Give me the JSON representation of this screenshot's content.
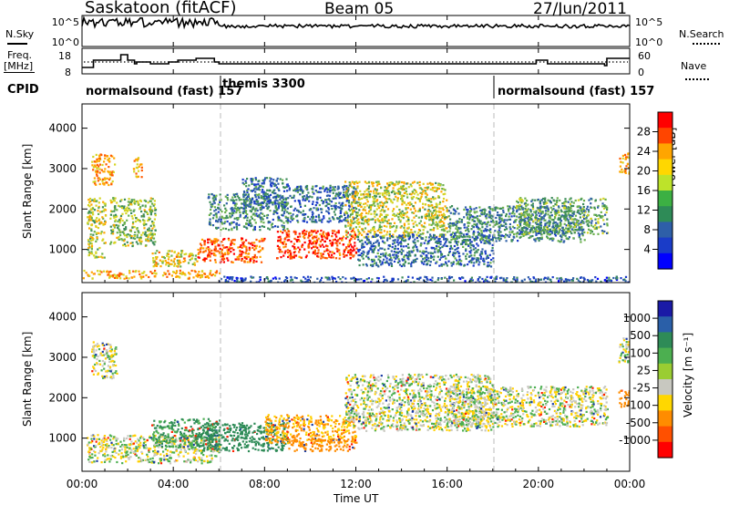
{
  "header": {
    "station": "Saskatoon (fitACF)",
    "beam": "Beam 05",
    "date": "27/Jun/2011"
  },
  "noise_panel": {
    "left_label": "N.Sky",
    "right_label": "N.Search",
    "left_ticks": [
      "10^5",
      "10^0"
    ],
    "right_ticks": [
      "10^5",
      "10^0"
    ]
  },
  "freq_panel": {
    "left_label_1": "Freq.",
    "left_label_2": "[MHz]",
    "right_label": "Nave",
    "left_ticks": [
      "18",
      "8"
    ],
    "right_ticks": [
      "60",
      "0"
    ]
  },
  "cpid": {
    "label": "CPID",
    "modes": [
      {
        "text": "normalsound (fast) 157",
        "start_hour": 0
      },
      {
        "text": "themis 3300",
        "start_hour": 6
      },
      {
        "text": "normalsound (fast) 157",
        "start_hour": 18
      }
    ]
  },
  "power_panel": {
    "ylabel": "Slant Range [km]",
    "colorbar_label": "Power [dB]",
    "colorbar_ticks": [
      "28",
      "24",
      "20",
      "16",
      "12",
      "8",
      "4"
    ],
    "colorbar_colors": [
      "#ff0000",
      "#ff4500",
      "#ffa500",
      "#ffd700",
      "#bde32a",
      "#3cb043",
      "#2e8b57",
      "#2e5fa8",
      "#1a3cc8",
      "#0000ff"
    ]
  },
  "velocity_panel": {
    "ylabel": "Slant Range [km]",
    "colorbar_label": "Velocity [m s⁻¹]",
    "colorbar_ticks": [
      "1000",
      "500",
      "100",
      "25",
      "-25",
      "-100",
      "-500",
      "-1000"
    ],
    "colorbar_colors": [
      "#1a1aa6",
      "#2a5fa8",
      "#2e8b57",
      "#4caf50",
      "#9acd32",
      "#c8c8c0",
      "#ffd700",
      "#ff8c00",
      "#ff5000",
      "#ff0000"
    ]
  },
  "axis": {
    "xlabel": "Time UT",
    "xticks": [
      "00:00",
      "04:00",
      "08:00",
      "12:00",
      "16:00",
      "20:00",
      "00:00"
    ],
    "yticks": [
      "1000",
      "2000",
      "3000",
      "4000"
    ]
  },
  "chart_data": {
    "type": "heatmap",
    "title": "Saskatoon (fitACF) Beam 05 27/Jun/2011",
    "xlabel": "Time UT",
    "ylabel": "Slant Range [km]",
    "x_range_hours": [
      0,
      24
    ],
    "y_range_km": [
      180,
      4600
    ],
    "power_colorbar": {
      "label": "Power [dB]",
      "ticks": [
        28,
        24,
        20,
        16,
        12,
        8,
        4
      ],
      "range": [
        0,
        30
      ]
    },
    "velocity_colorbar": {
      "label": "Velocity [m s-1]",
      "ticks": [
        1000,
        500,
        100,
        25,
        -25,
        -100,
        -500,
        -1000
      ]
    },
    "frequency_trace_mhz": [
      [
        0,
        10
      ],
      [
        0.5,
        14
      ],
      [
        1.7,
        17
      ],
      [
        2.0,
        14
      ],
      [
        2.3,
        12
      ],
      [
        2.4,
        13
      ],
      [
        3.0,
        12
      ],
      [
        3.8,
        13
      ],
      [
        4.2,
        14
      ],
      [
        5.0,
        15
      ],
      [
        5.8,
        13
      ],
      [
        6.0,
        12
      ],
      [
        10,
        12
      ],
      [
        14,
        12
      ],
      [
        18,
        12
      ],
      [
        19.5,
        12
      ],
      [
        19.9,
        14
      ],
      [
        20.4,
        12
      ],
      [
        22.0,
        12
      ],
      [
        22.9,
        11
      ],
      [
        23.0,
        15
      ],
      [
        24,
        15
      ]
    ],
    "nave_dotted_level": 30,
    "noise_level_log10": 3.5,
    "cpid_modes": [
      {
        "name": "normalsound (fast)",
        "cpid": 157,
        "start": "00:00",
        "end": "06:00"
      },
      {
        "name": "themis",
        "cpid": 3300,
        "start": "06:00",
        "end": "18:00"
      },
      {
        "name": "normalsound (fast)",
        "cpid": 157,
        "start": "18:00",
        "end": "24:00"
      }
    ],
    "power_regions_db": [
      {
        "t": [
          0.0,
          6.0
        ],
        "r": [
          300,
          500
        ],
        "db": 22
      },
      {
        "t": [
          0.2,
          1.0
        ],
        "r": [
          800,
          2300
        ],
        "db": 18
      },
      {
        "t": [
          0.4,
          1.4
        ],
        "r": [
          2600,
          3400
        ],
        "db": 22
      },
      {
        "t": [
          1.2,
          3.2
        ],
        "r": [
          1100,
          2300
        ],
        "db": 16
      },
      {
        "t": [
          2.2,
          2.6
        ],
        "r": [
          2800,
          3300
        ],
        "db": 22
      },
      {
        "t": [
          3.0,
          5.0
        ],
        "r": [
          600,
          1000
        ],
        "db": 20
      },
      {
        "t": [
          5.0,
          8.0
        ],
        "r": [
          700,
          1300
        ],
        "db": 26
      },
      {
        "t": [
          5.5,
          9.0
        ],
        "r": [
          1500,
          2400
        ],
        "db": 12
      },
      {
        "t": [
          7.0,
          9.0
        ],
        "r": [
          2000,
          2800
        ],
        "db": 10
      },
      {
        "t": [
          8.5,
          12.0
        ],
        "r": [
          800,
          1500
        ],
        "db": 28
      },
      {
        "t": [
          9.0,
          12.0
        ],
        "r": [
          1700,
          2600
        ],
        "db": 10
      },
      {
        "t": [
          11.5,
          16.0
        ],
        "r": [
          1300,
          2700
        ],
        "db": 18
      },
      {
        "t": [
          12.0,
          18.0
        ],
        "r": [
          600,
          1400
        ],
        "db": 10
      },
      {
        "t": [
          16.0,
          22.0
        ],
        "r": [
          1200,
          2100
        ],
        "db": 12
      },
      {
        "t": [
          19.0,
          23.0
        ],
        "r": [
          1400,
          2300
        ],
        "db": 14
      },
      {
        "t": [
          23.5,
          24.0
        ],
        "r": [
          2900,
          3400
        ],
        "db": 22
      },
      {
        "t": [
          6.0,
          24.0
        ],
        "r": [
          200,
          350
        ],
        "db": 8
      }
    ],
    "velocity_regions_ms": [
      {
        "t": [
          0.2,
          6.0
        ],
        "r": [
          400,
          1100
        ],
        "v": 0
      },
      {
        "t": [
          0.4,
          1.5
        ],
        "r": [
          2500,
          3400
        ],
        "v": 0
      },
      {
        "t": [
          3.0,
          6.0
        ],
        "r": [
          800,
          1500
        ],
        "v": 100
      },
      {
        "t": [
          5.0,
          9.0
        ],
        "r": [
          700,
          1400
        ],
        "v": 200
      },
      {
        "t": [
          8.0,
          12.0
        ],
        "r": [
          900,
          1600
        ],
        "v": -100
      },
      {
        "t": [
          9.0,
          12.0
        ],
        "r": [
          700,
          1000
        ],
        "v": -300
      },
      {
        "t": [
          11.5,
          18.0
        ],
        "r": [
          1200,
          2600
        ],
        "v": 0
      },
      {
        "t": [
          16.0,
          23.0
        ],
        "r": [
          1300,
          2300
        ],
        "v": 0
      },
      {
        "t": [
          23.5,
          24.0
        ],
        "r": [
          2900,
          3500
        ],
        "v": 0
      },
      {
        "t": [
          23.5,
          24.0
        ],
        "r": [
          1800,
          2200
        ],
        "v": -300
      }
    ]
  }
}
